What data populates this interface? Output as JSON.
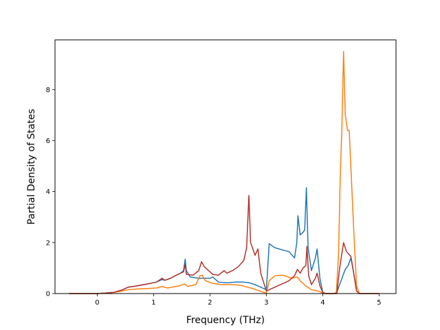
{
  "chart_data": {
    "type": "line",
    "xlabel": "Frequency (THz)",
    "ylabel": "Partial Density of States",
    "xlim": [
      -0.75,
      5.3
    ],
    "ylim": [
      0,
      9.95
    ],
    "xticks": [
      0,
      1,
      2,
      3,
      4,
      5
    ],
    "yticks": [
      0,
      2,
      4,
      6,
      8
    ],
    "grid": false,
    "legend": "none",
    "series": [
      {
        "color": "#1f77b4",
        "points": [
          [
            -0.5,
            0
          ],
          [
            0,
            0
          ],
          [
            0.15,
            0.02
          ],
          [
            0.3,
            0.05
          ],
          [
            0.45,
            0.15
          ],
          [
            0.55,
            0.25
          ],
          [
            0.7,
            0.3
          ],
          [
            0.9,
            0.38
          ],
          [
            1.05,
            0.45
          ],
          [
            1.15,
            0.55
          ],
          [
            1.2,
            0.52
          ],
          [
            1.3,
            0.6
          ],
          [
            1.4,
            0.72
          ],
          [
            1.48,
            0.8
          ],
          [
            1.53,
            0.9
          ],
          [
            1.56,
            1.35
          ],
          [
            1.58,
            0.9
          ],
          [
            1.65,
            0.65
          ],
          [
            1.8,
            0.6
          ],
          [
            2.0,
            0.6
          ],
          [
            2.05,
            0.65
          ],
          [
            2.15,
            0.45
          ],
          [
            2.3,
            0.42
          ],
          [
            2.45,
            0.45
          ],
          [
            2.6,
            0.45
          ],
          [
            2.7,
            0.42
          ],
          [
            2.8,
            0.35
          ],
          [
            2.9,
            0.25
          ],
          [
            3.0,
            0.15
          ],
          [
            3.05,
            1.95
          ],
          [
            3.15,
            1.8
          ],
          [
            3.3,
            1.7
          ],
          [
            3.4,
            1.65
          ],
          [
            3.5,
            1.4
          ],
          [
            3.54,
            2.0
          ],
          [
            3.56,
            3.05
          ],
          [
            3.6,
            2.3
          ],
          [
            3.65,
            2.4
          ],
          [
            3.68,
            2.5
          ],
          [
            3.71,
            4.15
          ],
          [
            3.74,
            1.8
          ],
          [
            3.8,
            0.9
          ],
          [
            3.87,
            1.4
          ],
          [
            3.9,
            1.75
          ],
          [
            3.95,
            0.6
          ],
          [
            4.0,
            0.05
          ],
          [
            4.05,
            0
          ],
          [
            4.2,
            0
          ],
          [
            4.25,
            0.05
          ],
          [
            4.3,
            0.35
          ],
          [
            4.4,
            0.95
          ],
          [
            4.45,
            1.1
          ],
          [
            4.5,
            1.4
          ],
          [
            4.55,
            0.8
          ],
          [
            4.6,
            0.1
          ],
          [
            4.65,
            0
          ],
          [
            5.0,
            0
          ]
        ]
      },
      {
        "color": "#ff7f0e",
        "points": [
          [
            -0.5,
            0
          ],
          [
            0,
            0
          ],
          [
            0.2,
            0.02
          ],
          [
            0.4,
            0.08
          ],
          [
            0.55,
            0.15
          ],
          [
            0.7,
            0.18
          ],
          [
            0.9,
            0.2
          ],
          [
            1.05,
            0.22
          ],
          [
            1.15,
            0.28
          ],
          [
            1.25,
            0.22
          ],
          [
            1.45,
            0.3
          ],
          [
            1.55,
            0.38
          ],
          [
            1.6,
            0.28
          ],
          [
            1.75,
            0.35
          ],
          [
            1.82,
            0.7
          ],
          [
            1.86,
            0.72
          ],
          [
            1.92,
            0.5
          ],
          [
            2.05,
            0.4
          ],
          [
            2.2,
            0.35
          ],
          [
            2.4,
            0.35
          ],
          [
            2.55,
            0.32
          ],
          [
            2.75,
            0.2
          ],
          [
            2.95,
            0.05
          ],
          [
            3.0,
            0.02
          ],
          [
            3.05,
            0.5
          ],
          [
            3.15,
            0.7
          ],
          [
            3.3,
            0.72
          ],
          [
            3.45,
            0.6
          ],
          [
            3.55,
            0.65
          ],
          [
            3.6,
            0.5
          ],
          [
            3.7,
            0.3
          ],
          [
            3.8,
            0.15
          ],
          [
            3.95,
            0.08
          ],
          [
            4.0,
            0
          ],
          [
            4.24,
            0
          ],
          [
            4.28,
            1.5
          ],
          [
            4.31,
            4.5
          ],
          [
            4.34,
            6.5
          ],
          [
            4.37,
            9.5
          ],
          [
            4.4,
            7.0
          ],
          [
            4.44,
            6.4
          ],
          [
            4.47,
            6.4
          ],
          [
            4.55,
            2.5
          ],
          [
            4.6,
            0.3
          ],
          [
            4.65,
            0
          ],
          [
            5.0,
            0
          ]
        ]
      },
      {
        "color": "#b5302a",
        "points": [
          [
            -0.5,
            0
          ],
          [
            0,
            0
          ],
          [
            0.15,
            0.02
          ],
          [
            0.3,
            0.05
          ],
          [
            0.45,
            0.15
          ],
          [
            0.55,
            0.25
          ],
          [
            0.7,
            0.3
          ],
          [
            0.9,
            0.38
          ],
          [
            1.05,
            0.45
          ],
          [
            1.15,
            0.6
          ],
          [
            1.2,
            0.52
          ],
          [
            1.3,
            0.6
          ],
          [
            1.4,
            0.72
          ],
          [
            1.48,
            0.8
          ],
          [
            1.53,
            0.85
          ],
          [
            1.56,
            1.15
          ],
          [
            1.58,
            0.75
          ],
          [
            1.7,
            0.72
          ],
          [
            1.8,
            0.9
          ],
          [
            1.85,
            1.25
          ],
          [
            1.9,
            1.05
          ],
          [
            2.0,
            0.85
          ],
          [
            2.05,
            0.75
          ],
          [
            2.15,
            0.72
          ],
          [
            2.25,
            0.9
          ],
          [
            2.3,
            0.8
          ],
          [
            2.4,
            0.9
          ],
          [
            2.5,
            1.05
          ],
          [
            2.6,
            1.3
          ],
          [
            2.65,
            1.8
          ],
          [
            2.69,
            3.85
          ],
          [
            2.72,
            2.0
          ],
          [
            2.8,
            1.5
          ],
          [
            2.85,
            1.75
          ],
          [
            2.9,
            0.8
          ],
          [
            3.0,
            0.1
          ],
          [
            3.05,
            0.15
          ],
          [
            3.15,
            0.25
          ],
          [
            3.3,
            0.4
          ],
          [
            3.4,
            0.5
          ],
          [
            3.5,
            0.7
          ],
          [
            3.55,
            0.95
          ],
          [
            3.6,
            0.8
          ],
          [
            3.65,
            1.0
          ],
          [
            3.7,
            1.1
          ],
          [
            3.72,
            1.85
          ],
          [
            3.75,
            0.7
          ],
          [
            3.8,
            0.35
          ],
          [
            3.87,
            0.6
          ],
          [
            3.9,
            0.8
          ],
          [
            3.95,
            0.3
          ],
          [
            4.0,
            0.05
          ],
          [
            4.05,
            0
          ],
          [
            4.25,
            0
          ],
          [
            4.3,
            1.0
          ],
          [
            4.37,
            2.0
          ],
          [
            4.42,
            1.65
          ],
          [
            4.5,
            1.45
          ],
          [
            4.55,
            0.8
          ],
          [
            4.6,
            0.1
          ],
          [
            4.65,
            0
          ],
          [
            5.0,
            0
          ]
        ]
      }
    ]
  }
}
